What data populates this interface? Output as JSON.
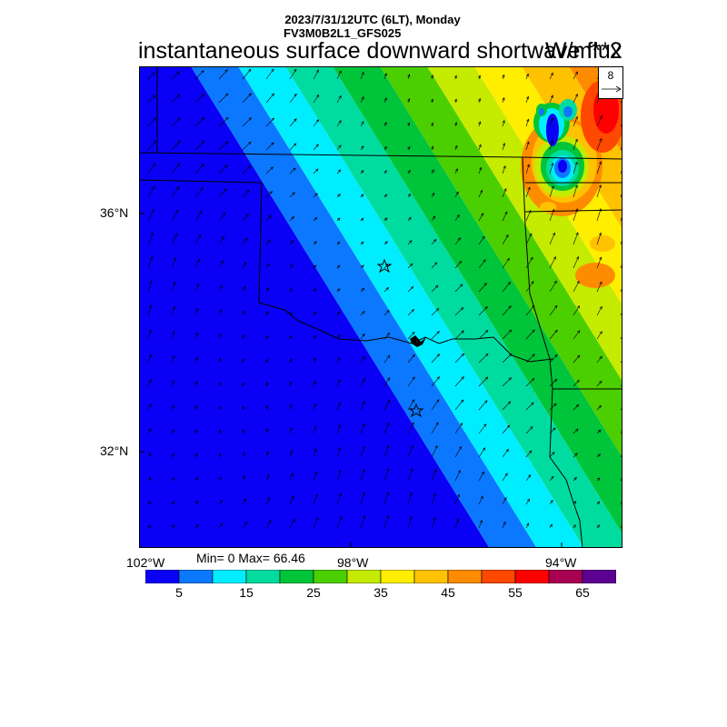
{
  "header": {
    "line1": "2023/7/31/12UTC (6LT), Monday",
    "line2": "FV3M0B2L1_GFS025",
    "title": "instantaneous surface downward shortwave flux",
    "units": "W/m**2"
  },
  "reference_vector": {
    "label": "8"
  },
  "stats": {
    "text": "Min= 0 Max= 66.46"
  },
  "axes": {
    "lat_labels": [
      "36°N",
      "32°N"
    ],
    "lon_labels": [
      "102°W",
      "98°W",
      "94°W"
    ]
  },
  "colorbar": {
    "colors": [
      "#0a00f5",
      "#0c78ff",
      "#00edff",
      "#00dca0",
      "#00c43a",
      "#4ccf00",
      "#c4eb00",
      "#ffee00",
      "#ffc200",
      "#ff8c00",
      "#ff4800",
      "#ff0000",
      "#a80050",
      "#5c0092"
    ],
    "tick_labels": [
      "5",
      "15",
      "25",
      "35",
      "45",
      "55",
      "65"
    ]
  },
  "chart_data": {
    "type": "heatmap",
    "variable": "instantaneous surface downward shortwave flux",
    "units": "W/m**2",
    "min": 0,
    "max": 66.46,
    "x_range_lon": [
      -102.2,
      -93.0
    ],
    "y_range_lat": [
      30.5,
      38.5
    ],
    "contour_levels": [
      0,
      5,
      10,
      15,
      20,
      25,
      30,
      35,
      40,
      45,
      50,
      55,
      60,
      65,
      70
    ],
    "markers": [
      {
        "type": "star",
        "lon": -97.5,
        "lat": 35.2
      },
      {
        "type": "star",
        "lon": -97.0,
        "lat": 32.8
      }
    ]
  }
}
